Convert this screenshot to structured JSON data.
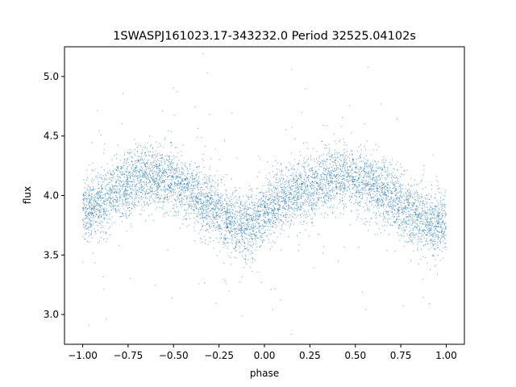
{
  "chart_data": {
    "type": "scatter",
    "title": "1SWASPJ161023.17-343232.0 Period 32525.04102s",
    "xlabel": "phase",
    "ylabel": "flux",
    "xlim": [
      -1.1,
      1.1
    ],
    "ylim": [
      2.75,
      5.25
    ],
    "x_ticks": [
      -1.0,
      -0.75,
      -0.5,
      -0.25,
      0.0,
      0.25,
      0.5,
      0.75,
      1.0
    ],
    "x_tick_labels": [
      "−1.00",
      "−0.75",
      "−0.50",
      "−0.25",
      "0.00",
      "0.25",
      "0.50",
      "0.75",
      "1.00"
    ],
    "y_ticks": [
      3.0,
      3.5,
      4.0,
      4.5,
      5.0
    ],
    "y_tick_labels": [
      "3.0",
      "3.5",
      "4.0",
      "4.5",
      "5.0"
    ],
    "grid": false,
    "point_color": "#1f77b4",
    "series": [
      {
        "x": [
          -1.0,
          -0.95,
          -0.9,
          -0.85,
          -0.8,
          -0.75,
          -0.7,
          -0.65,
          -0.6,
          -0.55,
          -0.5,
          -0.45,
          -0.4,
          -0.35,
          -0.3,
          -0.25,
          -0.2,
          -0.15,
          -0.1,
          -0.05,
          0.0,
          0.05,
          0.1,
          0.15,
          0.2,
          0.25,
          0.3,
          0.35,
          0.4,
          0.45,
          0.5,
          0.55,
          0.6,
          0.65,
          0.7,
          0.75,
          0.8,
          0.85,
          0.9,
          0.95,
          1.0
        ],
        "y": [
          3.85,
          3.9,
          3.95,
          4.0,
          4.05,
          4.1,
          4.15,
          4.17,
          4.16,
          4.13,
          4.1,
          4.07,
          4.03,
          3.98,
          3.92,
          3.85,
          3.79,
          3.76,
          3.75,
          3.77,
          3.83,
          3.9,
          3.96,
          4.0,
          4.03,
          4.07,
          4.11,
          4.14,
          4.16,
          4.15,
          4.12,
          4.09,
          4.06,
          4.02,
          3.97,
          3.91,
          3.86,
          3.82,
          3.79,
          3.77,
          3.78
        ]
      }
    ]
  }
}
